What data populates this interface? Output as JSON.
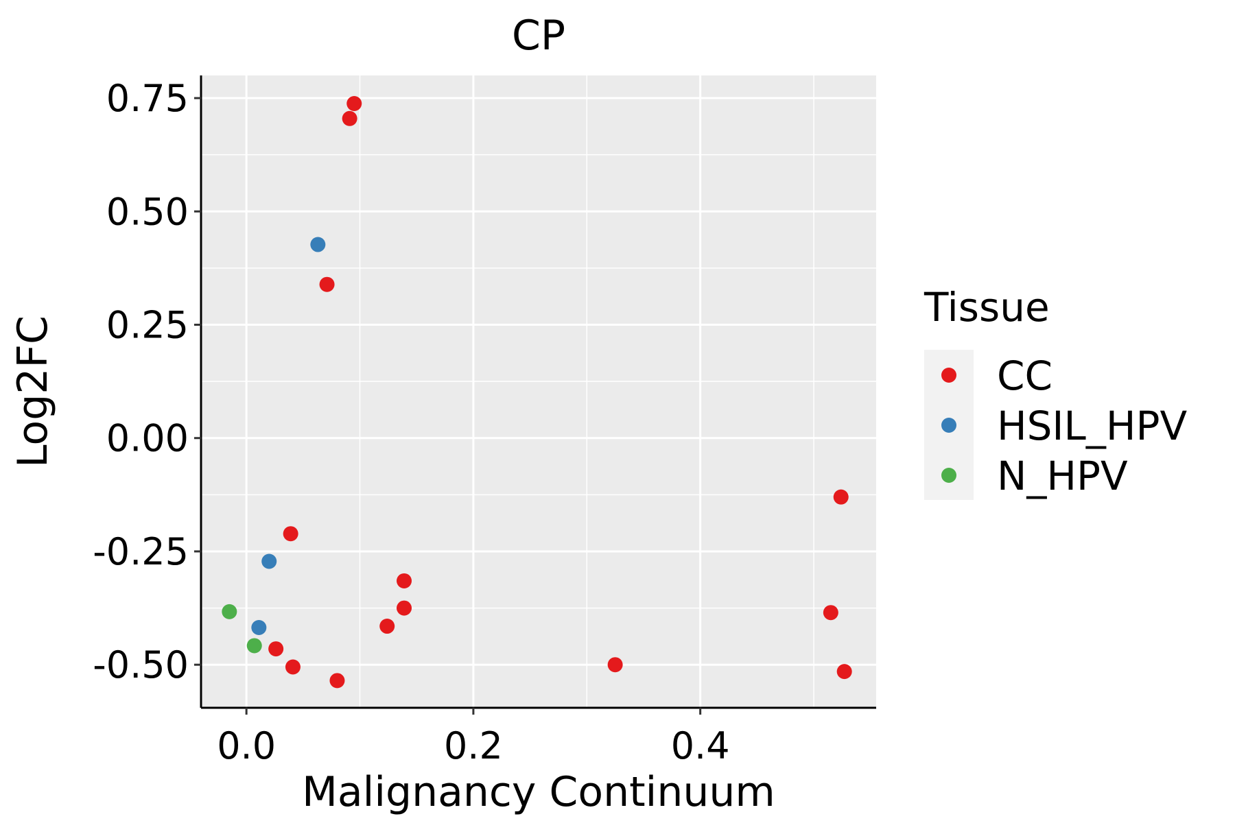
{
  "chart_data": {
    "type": "scatter",
    "title": "CP",
    "xlabel": "Malignancy Continuum",
    "ylabel": "Log2FC",
    "xlim": [
      -0.04,
      0.555
    ],
    "ylim": [
      -0.595,
      0.8
    ],
    "x_ticks": [
      0.0,
      0.2,
      0.4
    ],
    "x_tick_labels": [
      "0.0",
      "0.2",
      "0.4"
    ],
    "y_ticks": [
      -0.5,
      -0.25,
      0.0,
      0.25,
      0.5,
      0.75
    ],
    "y_tick_labels": [
      "-0.50",
      "-0.25",
      "0.00",
      "0.25",
      "0.50",
      "0.75"
    ],
    "grid": true,
    "legend": {
      "title": "Tissue",
      "position": "right",
      "entries": [
        {
          "name": "CC",
          "color": "#E41A1C"
        },
        {
          "name": "HSIL_HPV",
          "color": "#377EB8"
        },
        {
          "name": "N_HPV",
          "color": "#4DAF4A"
        }
      ]
    },
    "series": [
      {
        "name": "CC",
        "color": "#E41A1C",
        "points": [
          {
            "x": 0.095,
            "y": 0.738
          },
          {
            "x": 0.091,
            "y": 0.705
          },
          {
            "x": 0.071,
            "y": 0.339
          },
          {
            "x": 0.039,
            "y": -0.211
          },
          {
            "x": 0.139,
            "y": -0.315
          },
          {
            "x": 0.139,
            "y": -0.375
          },
          {
            "x": 0.124,
            "y": -0.415
          },
          {
            "x": 0.026,
            "y": -0.465
          },
          {
            "x": 0.041,
            "y": -0.505
          },
          {
            "x": 0.08,
            "y": -0.535
          },
          {
            "x": 0.325,
            "y": -0.5
          },
          {
            "x": 0.524,
            "y": -0.13
          },
          {
            "x": 0.515,
            "y": -0.385
          },
          {
            "x": 0.527,
            "y": -0.515
          }
        ]
      },
      {
        "name": "HSIL_HPV",
        "color": "#377EB8",
        "points": [
          {
            "x": 0.063,
            "y": 0.427
          },
          {
            "x": 0.02,
            "y": -0.272
          },
          {
            "x": 0.011,
            "y": -0.418
          }
        ]
      },
      {
        "name": "N_HPV",
        "color": "#4DAF4A",
        "points": [
          {
            "x": -0.015,
            "y": -0.383
          },
          {
            "x": 0.007,
            "y": -0.458
          }
        ]
      }
    ]
  }
}
